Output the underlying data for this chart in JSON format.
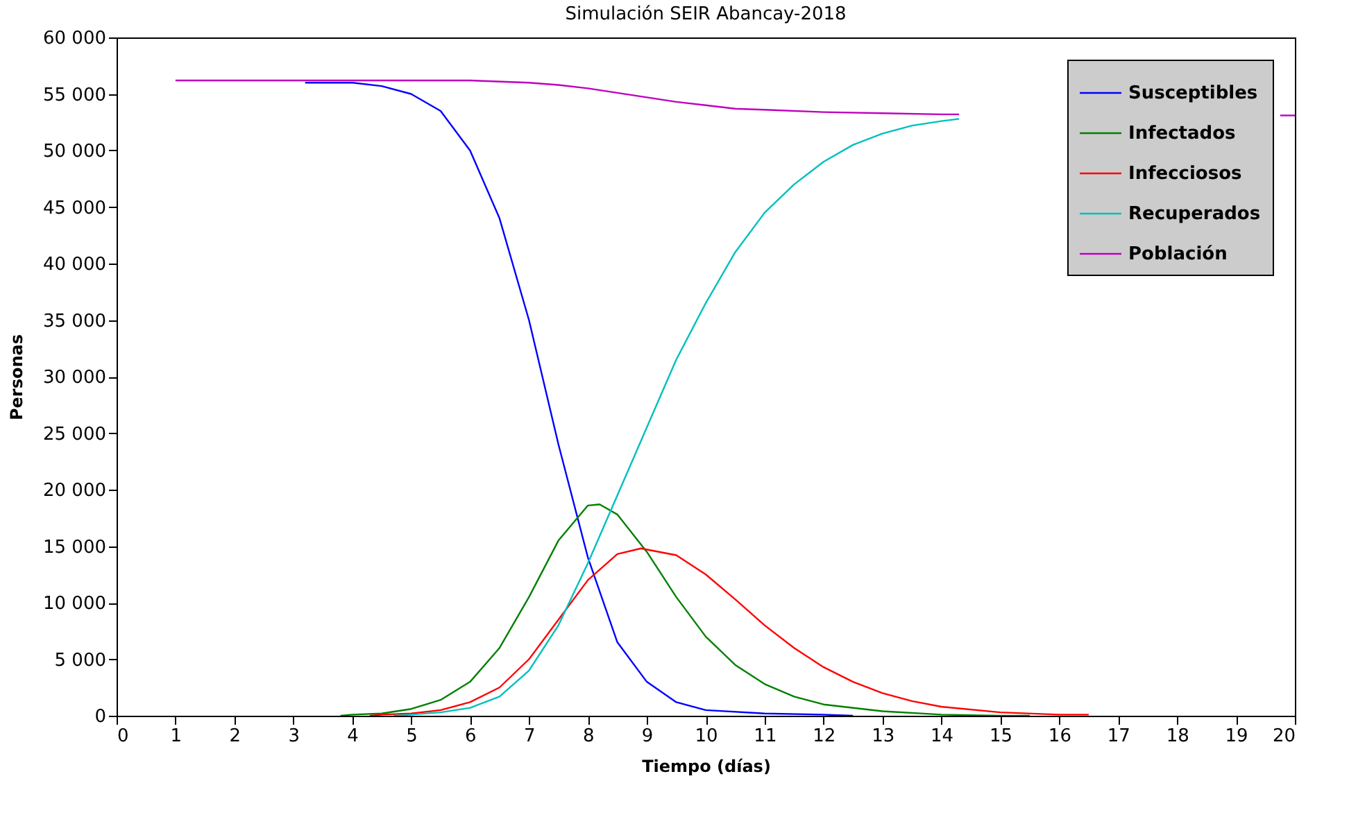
{
  "chart_data": {
    "type": "line",
    "title": "Simulación SEIR Abancay-2018",
    "xlabel": "Tiempo (días)",
    "ylabel": "Personas",
    "xlim": [
      0,
      20
    ],
    "xticks": [
      0,
      1,
      2,
      3,
      4,
      5,
      6,
      7,
      8,
      9,
      10,
      11,
      12,
      13,
      14,
      15,
      16,
      17,
      18,
      19,
      20
    ],
    "ylim": [
      0,
      60000
    ],
    "yticks": [
      {
        "value": 0,
        "label": "0"
      },
      {
        "value": 5000,
        "label": "5 000"
      },
      {
        "value": 10000,
        "label": "10 000"
      },
      {
        "value": 15000,
        "label": "15 000"
      },
      {
        "value": 20000,
        "label": "20 000"
      },
      {
        "value": 25000,
        "label": "25 000"
      },
      {
        "value": 30000,
        "label": "30 000"
      },
      {
        "value": 35000,
        "label": "35 000"
      },
      {
        "value": 40000,
        "label": "40 000"
      },
      {
        "value": 45000,
        "label": "45 000"
      },
      {
        "value": 50000,
        "label": "50 000"
      },
      {
        "value": 55000,
        "label": "55 000"
      },
      {
        "value": 60000,
        "label": "60 000"
      }
    ],
    "grid": false,
    "legend": "top right",
    "marker": "none",
    "line_style": "solid",
    "series": [
      {
        "name": "Susceptibles",
        "color": "#0000ff",
        "x": [
          3.2,
          4,
          4.5,
          5,
          5.5,
          6,
          6.5,
          7,
          7.5,
          8,
          8.5,
          9,
          9.5,
          10,
          11,
          12,
          12.5
        ],
        "values": [
          56000,
          56000,
          55700,
          55000,
          53500,
          50000,
          44000,
          35000,
          24000,
          14000,
          6500,
          3000,
          1200,
          500,
          200,
          100,
          0
        ]
      },
      {
        "name": "Infectados",
        "color": "#008000",
        "x": [
          3.8,
          4,
          4.5,
          5,
          5.5,
          6,
          6.5,
          7,
          7.5,
          8,
          8.2,
          8.5,
          9,
          9.5,
          10,
          10.5,
          11,
          11.5,
          12,
          13,
          14,
          15,
          15.5
        ],
        "values": [
          0,
          100,
          200,
          600,
          1400,
          3000,
          6000,
          10500,
          15500,
          18600,
          18700,
          17800,
          14500,
          10500,
          7000,
          4500,
          2800,
          1700,
          1000,
          400,
          100,
          0,
          0
        ]
      },
      {
        "name": "Infecciosos",
        "color": "#ff0000",
        "x": [
          4.3,
          4.5,
          5,
          5.5,
          6,
          6.5,
          7,
          7.5,
          8,
          8.5,
          8.9,
          9.5,
          10,
          10.5,
          11,
          11.5,
          12,
          12.5,
          13,
          13.5,
          14,
          15,
          16,
          16.5
        ],
        "values": [
          0,
          100,
          200,
          500,
          1200,
          2500,
          5000,
          8500,
          12000,
          14300,
          14800,
          14200,
          12500,
          10300,
          8000,
          6000,
          4300,
          3000,
          2000,
          1300,
          800,
          300,
          100,
          100
        ]
      },
      {
        "name": "Recuperados",
        "color": "#00bfbf",
        "x": [
          4.7,
          5,
          5.5,
          6,
          6.5,
          7,
          7.5,
          8,
          8.5,
          9,
          9.5,
          10,
          10.5,
          11,
          11.5,
          12,
          12.5,
          13,
          13.5,
          14,
          14.3
        ],
        "values": [
          0,
          100,
          300,
          700,
          1700,
          4000,
          8000,
          13500,
          19500,
          25500,
          31500,
          36500,
          41000,
          44500,
          47000,
          49000,
          50500,
          51500,
          52200,
          52600,
          52800
        ]
      },
      {
        "name": "Población",
        "color": "#bf00bf",
        "x": [
          1,
          6,
          7,
          7.5,
          8,
          8.5,
          9,
          9.5,
          10,
          10.5,
          11,
          12,
          13,
          14,
          14.3,
          14.4,
          19.75,
          20
        ],
        "values": [
          56200,
          56200,
          56000,
          55800,
          55500,
          55100,
          54700,
          54300,
          54000,
          53700,
          53600,
          53400,
          53300,
          53200,
          53200,
          null,
          53100,
          53100
        ]
      }
    ]
  }
}
